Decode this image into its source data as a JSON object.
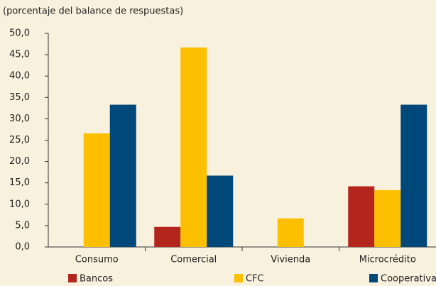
{
  "chart_data": {
    "type": "bar",
    "subtitle": "(porcentaje del balance de respuestas)",
    "categories": [
      "Consumo",
      "Comercial",
      "Vivienda",
      "Microcrédito"
    ],
    "series": [
      {
        "name": "Bancos",
        "color": "#b3261e",
        "values": [
          0,
          4.7,
          0,
          14.2
        ]
      },
      {
        "name": "CFC",
        "color": "#fcc000",
        "values": [
          26.6,
          46.7,
          6.7,
          13.3
        ]
      },
      {
        "name": "Cooperativas",
        "color": "#00477a",
        "values": [
          33.3,
          16.7,
          0,
          33.3
        ]
      }
    ],
    "ylim": [
      0,
      50
    ],
    "yticks": [
      {
        "value": 0,
        "label": "0,0"
      },
      {
        "value": 5,
        "label": "5,0"
      },
      {
        "value": 10,
        "label": "10,0"
      },
      {
        "value": 15,
        "label": "15,0"
      },
      {
        "value": 20,
        "label": "20,0"
      },
      {
        "value": 25,
        "label": "25,0"
      },
      {
        "value": 30,
        "label": "30,0"
      },
      {
        "value": 35,
        "label": "35,0"
      },
      {
        "value": 40,
        "label": "40,0"
      },
      {
        "value": 45,
        "label": "45,0"
      },
      {
        "value": 50,
        "label": "50,0"
      }
    ],
    "grid": false,
    "legend": "bottom"
  }
}
